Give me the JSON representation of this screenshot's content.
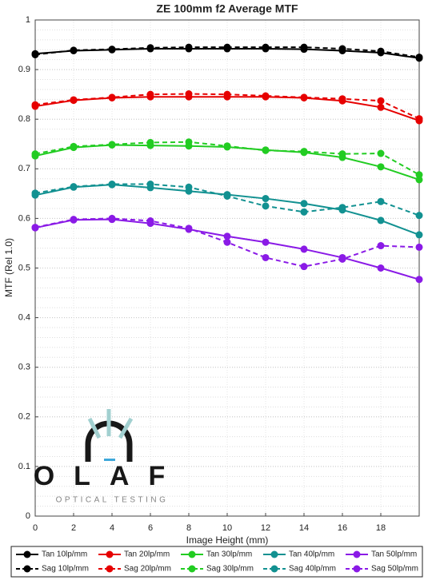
{
  "chart_data": {
    "type": "line",
    "title": "ZE 100mm f2 Average MTF",
    "x_label": "Image Height (mm)",
    "y_label": "MTF (Rel 1.0)",
    "x": [
      0,
      2,
      4,
      6,
      8,
      10,
      12,
      14,
      16,
      18,
      20
    ],
    "xlim": [
      0,
      20
    ],
    "xticks": [
      0,
      2,
      4,
      6,
      8,
      10,
      12,
      14,
      16,
      18
    ],
    "ylim": [
      0,
      1
    ],
    "yticks": [
      0,
      0.1,
      0.2,
      0.3,
      0.4,
      0.5,
      0.6,
      0.7,
      0.8,
      0.9,
      1
    ],
    "grid": true,
    "series": [
      {
        "name": "Tan 10lp/mm",
        "color": "#000000",
        "linestyle": "solid",
        "values": [
          0.932,
          0.938,
          0.94,
          0.942,
          0.942,
          0.942,
          0.942,
          0.941,
          0.938,
          0.934,
          0.923
        ]
      },
      {
        "name": "Sag 10lp/mm",
        "color": "#000000",
        "linestyle": "dashed",
        "values": [
          0.93,
          0.939,
          0.941,
          0.944,
          0.945,
          0.945,
          0.945,
          0.945,
          0.942,
          0.937,
          0.925
        ]
      },
      {
        "name": "Tan 20lp/mm",
        "color": "#e60000",
        "linestyle": "solid",
        "values": [
          0.826,
          0.838,
          0.843,
          0.845,
          0.845,
          0.845,
          0.845,
          0.843,
          0.837,
          0.824,
          0.797
        ]
      },
      {
        "name": "Sag 20lp/mm",
        "color": "#e60000",
        "linestyle": "dashed",
        "values": [
          0.829,
          0.839,
          0.844,
          0.85,
          0.851,
          0.85,
          0.847,
          0.844,
          0.841,
          0.837,
          0.801
        ]
      },
      {
        "name": "Tan 30lp/mm",
        "color": "#22cc22",
        "linestyle": "solid",
        "values": [
          0.726,
          0.743,
          0.748,
          0.747,
          0.746,
          0.744,
          0.738,
          0.733,
          0.723,
          0.704,
          0.678
        ]
      },
      {
        "name": "Sag 30lp/mm",
        "color": "#22cc22",
        "linestyle": "dashed",
        "values": [
          0.73,
          0.745,
          0.749,
          0.753,
          0.754,
          0.746,
          0.737,
          0.735,
          0.73,
          0.731,
          0.688
        ]
      },
      {
        "name": "Tan 40lp/mm",
        "color": "#129191",
        "linestyle": "solid",
        "values": [
          0.647,
          0.663,
          0.668,
          0.662,
          0.655,
          0.648,
          0.64,
          0.63,
          0.617,
          0.596,
          0.567
        ]
      },
      {
        "name": "Sag 40lp/mm",
        "color": "#129191",
        "linestyle": "dashed",
        "values": [
          0.651,
          0.664,
          0.669,
          0.669,
          0.663,
          0.645,
          0.625,
          0.613,
          0.622,
          0.634,
          0.606
        ]
      },
      {
        "name": "Tan 50lp/mm",
        "color": "#8a1ae6",
        "linestyle": "solid",
        "values": [
          0.581,
          0.597,
          0.598,
          0.59,
          0.578,
          0.564,
          0.552,
          0.538,
          0.521,
          0.5,
          0.477
        ]
      },
      {
        "name": "Sag 50lp/mm",
        "color": "#8a1ae6",
        "linestyle": "dashed",
        "values": [
          0.582,
          0.598,
          0.6,
          0.595,
          0.58,
          0.552,
          0.521,
          0.503,
          0.518,
          0.545,
          0.542
        ]
      }
    ]
  },
  "watermark": {
    "title": "OLAF",
    "subtitle": "OPTICAL TESTING"
  }
}
